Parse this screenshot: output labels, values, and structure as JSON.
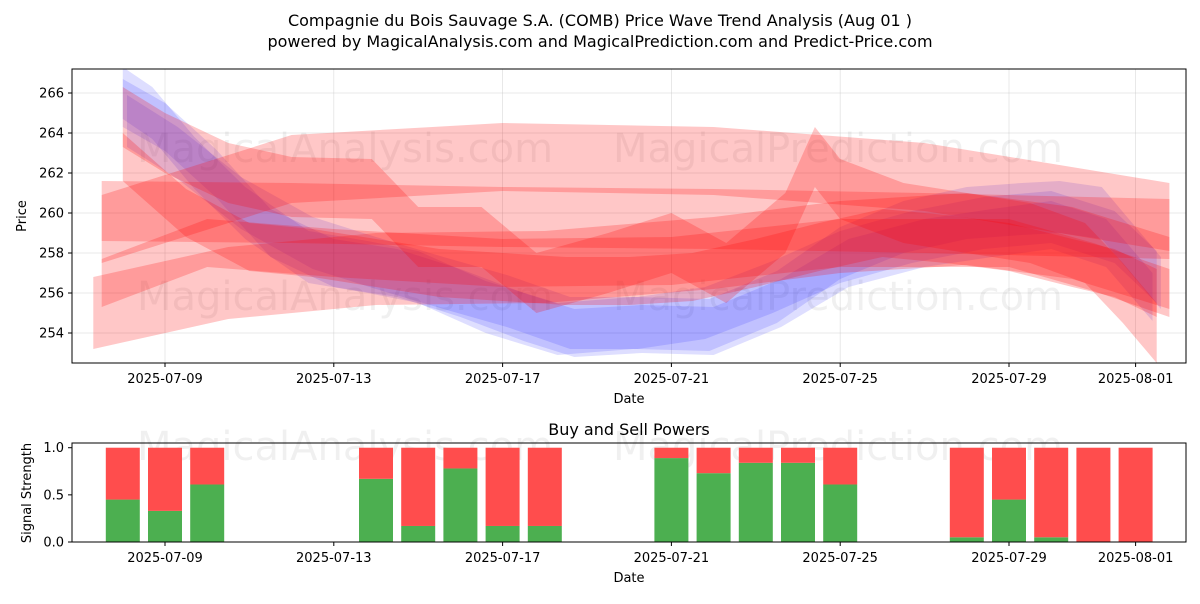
{
  "chart_data": [
    {
      "type": "area",
      "title": "Compagnie du Bois Sauvage S.A. (COMB) Price Wave Trend Analysis (Aug 01 )",
      "subtitle": "powered by MagicalAnalysis.com and MagicalPrediction.com and Predict-Price.com",
      "xlabel": "Date",
      "ylabel": "Price",
      "x_ticks": [
        "2025-07-09",
        "2025-07-13",
        "2025-07-17",
        "2025-07-21",
        "2025-07-25",
        "2025-07-29",
        "2025-08-01"
      ],
      "y_ticks": [
        254,
        256,
        258,
        260,
        262,
        264,
        266
      ],
      "ylim": [
        252.5,
        267.2
      ],
      "watermarks": [
        "MagicalAnalysis.com",
        "MagicalPrediction.com"
      ],
      "bands_color": "#ff0000",
      "series": [
        {
          "name": "blue-wave-1",
          "color": "#0000ff",
          "x": [
            8,
            8.7,
            9.7,
            10.9,
            12.4,
            13.8,
            15,
            16.6,
            18.3,
            20.1,
            21.9,
            23.5,
            25,
            26.5,
            28,
            29.3,
            30.2,
            31.2,
            32.6
          ],
          "center": [
            266,
            265,
            262.5,
            260,
            257.8,
            257.3,
            256.8,
            255.3,
            254.2,
            254.5,
            254.4,
            255.8,
            258,
            259.3,
            260,
            260.2,
            260.3,
            260,
            256.5
          ],
          "width": 1.3
        },
        {
          "name": "blue-wave-2",
          "color": "#0000ff",
          "x": [
            8,
            9,
            10.2,
            11.5,
            13,
            14.5,
            16,
            17.5,
            18.7,
            20.3,
            22,
            23.6,
            25.2,
            27,
            28.6,
            30,
            31.3,
            32.4
          ],
          "center": [
            265.5,
            264.3,
            262,
            259,
            257.5,
            257,
            256,
            254.8,
            254,
            254.2,
            254.1,
            255.5,
            257.5,
            258.5,
            259,
            259.4,
            258.5,
            255.8
          ],
          "width": 1.2
        },
        {
          "name": "blue-wave-3",
          "color": "#0000ff",
          "x": [
            8.1,
            9.3,
            10.8,
            12.5,
            14,
            15.6,
            17.1,
            18.6,
            20.2,
            21.8,
            23.4,
            25,
            26.7,
            28.4,
            30,
            31.5,
            32.5
          ],
          "center": [
            264.6,
            263,
            260.5,
            258.5,
            257.5,
            256.5,
            255.6,
            254.5,
            254.5,
            255,
            256.3,
            257.8,
            258.8,
            259.5,
            259.8,
            258.8,
            256.8
          ],
          "width": 1.3
        },
        {
          "name": "red-wave-1",
          "color": "#ff0000",
          "x": [
            8,
            9,
            10.5,
            12,
            13.9,
            15,
            16.5,
            17.8,
            19.5,
            21,
            22.3,
            23.7,
            24.4,
            25,
            26.5,
            28,
            29.5,
            30.8,
            31.7,
            32.5
          ],
          "center": [
            264.8,
            263.5,
            262,
            261.3,
            261.2,
            258.8,
            258.8,
            256.5,
            257.5,
            258.5,
            257,
            259.5,
            262.8,
            261.2,
            260,
            259.5,
            259,
            258,
            256,
            254
          ],
          "width": 1.5
        },
        {
          "name": "red-wave-2",
          "color": "#ff0000",
          "x": [
            8,
            9.5,
            11,
            12.5,
            14,
            15.5,
            17,
            18.5,
            20,
            21.5,
            23,
            24.5,
            26,
            27.5,
            29,
            30.5,
            31.5,
            32.5
          ],
          "center": [
            262.8,
            260,
            258.3,
            258,
            257.5,
            257,
            256.8,
            256.6,
            256.6,
            256.8,
            257.5,
            258.3,
            259,
            258.7,
            258.3,
            257.5,
            257,
            256
          ],
          "width": 1.2
        },
        {
          "name": "red-band-1",
          "color": "#ff0000",
          "x": [
            7.5,
            12,
            17,
            22,
            27,
            32.8
          ],
          "center": [
            260.1,
            260,
            259.8,
            259.7,
            259.5,
            259.2
          ],
          "width": 1.5
        },
        {
          "name": "red-band-2",
          "color": "#ff0000",
          "x": [
            7.5,
            12,
            17,
            22,
            27,
            32.8
          ],
          "center": [
            259.2,
            262.2,
            262.8,
            262.6,
            261.8,
            259.8
          ],
          "width": 1.7
        },
        {
          "name": "red-band-3",
          "color": "#ff0000",
          "x": [
            7.3,
            10.5,
            14,
            18,
            22,
            25,
            28,
            30.5,
            32.8
          ],
          "center": [
            255,
            256.5,
            257.2,
            257.3,
            258,
            258.8,
            259.2,
            258.5,
            257
          ],
          "width": 1.8
        },
        {
          "name": "red-band-4",
          "color": "#ff0000",
          "x": [
            7.5,
            10,
            13,
            17,
            21,
            25,
            29,
            31,
            32.8
          ],
          "center": [
            256.5,
            258.5,
            258,
            257.5,
            257.6,
            258.5,
            258.5,
            257.3,
            256
          ],
          "width": 1.2
        }
      ]
    },
    {
      "type": "bar",
      "title": "Buy and Sell Powers",
      "xlabel": "Date",
      "ylabel": "Signal Strength",
      "x_ticks": [
        "2025-07-09",
        "2025-07-13",
        "2025-07-17",
        "2025-07-21",
        "2025-07-25",
        "2025-07-29",
        "2025-08-01"
      ],
      "y_ticks": [
        "0.0",
        "0.5",
        "1.0"
      ],
      "ylim": [
        0,
        1.05
      ],
      "colors": {
        "buy": "#4caf50",
        "sell": "#ff4d4d"
      },
      "watermarks": [
        "MagicalAnalysis.com",
        "MagicalPrediction.com"
      ],
      "categories": [
        "2025-07-08",
        "2025-07-09",
        "2025-07-10",
        "2025-07-14",
        "2025-07-15",
        "2025-07-16",
        "2025-07-17",
        "2025-07-18",
        "2025-07-21",
        "2025-07-22",
        "2025-07-23",
        "2025-07-24",
        "2025-07-25",
        "2025-07-28",
        "2025-07-29",
        "2025-07-30",
        "2025-07-31",
        "2025-08-01"
      ],
      "series": [
        {
          "name": "Buy",
          "values": [
            0.45,
            0.33,
            0.61,
            0.67,
            0.17,
            0.78,
            0.17,
            0.17,
            0.89,
            0.73,
            0.84,
            0.84,
            0.61,
            0.05,
            0.45,
            0.05,
            0.0,
            0.0
          ]
        },
        {
          "name": "Sell",
          "values": [
            0.55,
            0.67,
            0.39,
            0.33,
            0.83,
            0.22,
            0.83,
            0.83,
            0.11,
            0.27,
            0.16,
            0.16,
            0.39,
            0.95,
            0.55,
            0.95,
            1.0,
            1.0
          ]
        }
      ]
    }
  ]
}
